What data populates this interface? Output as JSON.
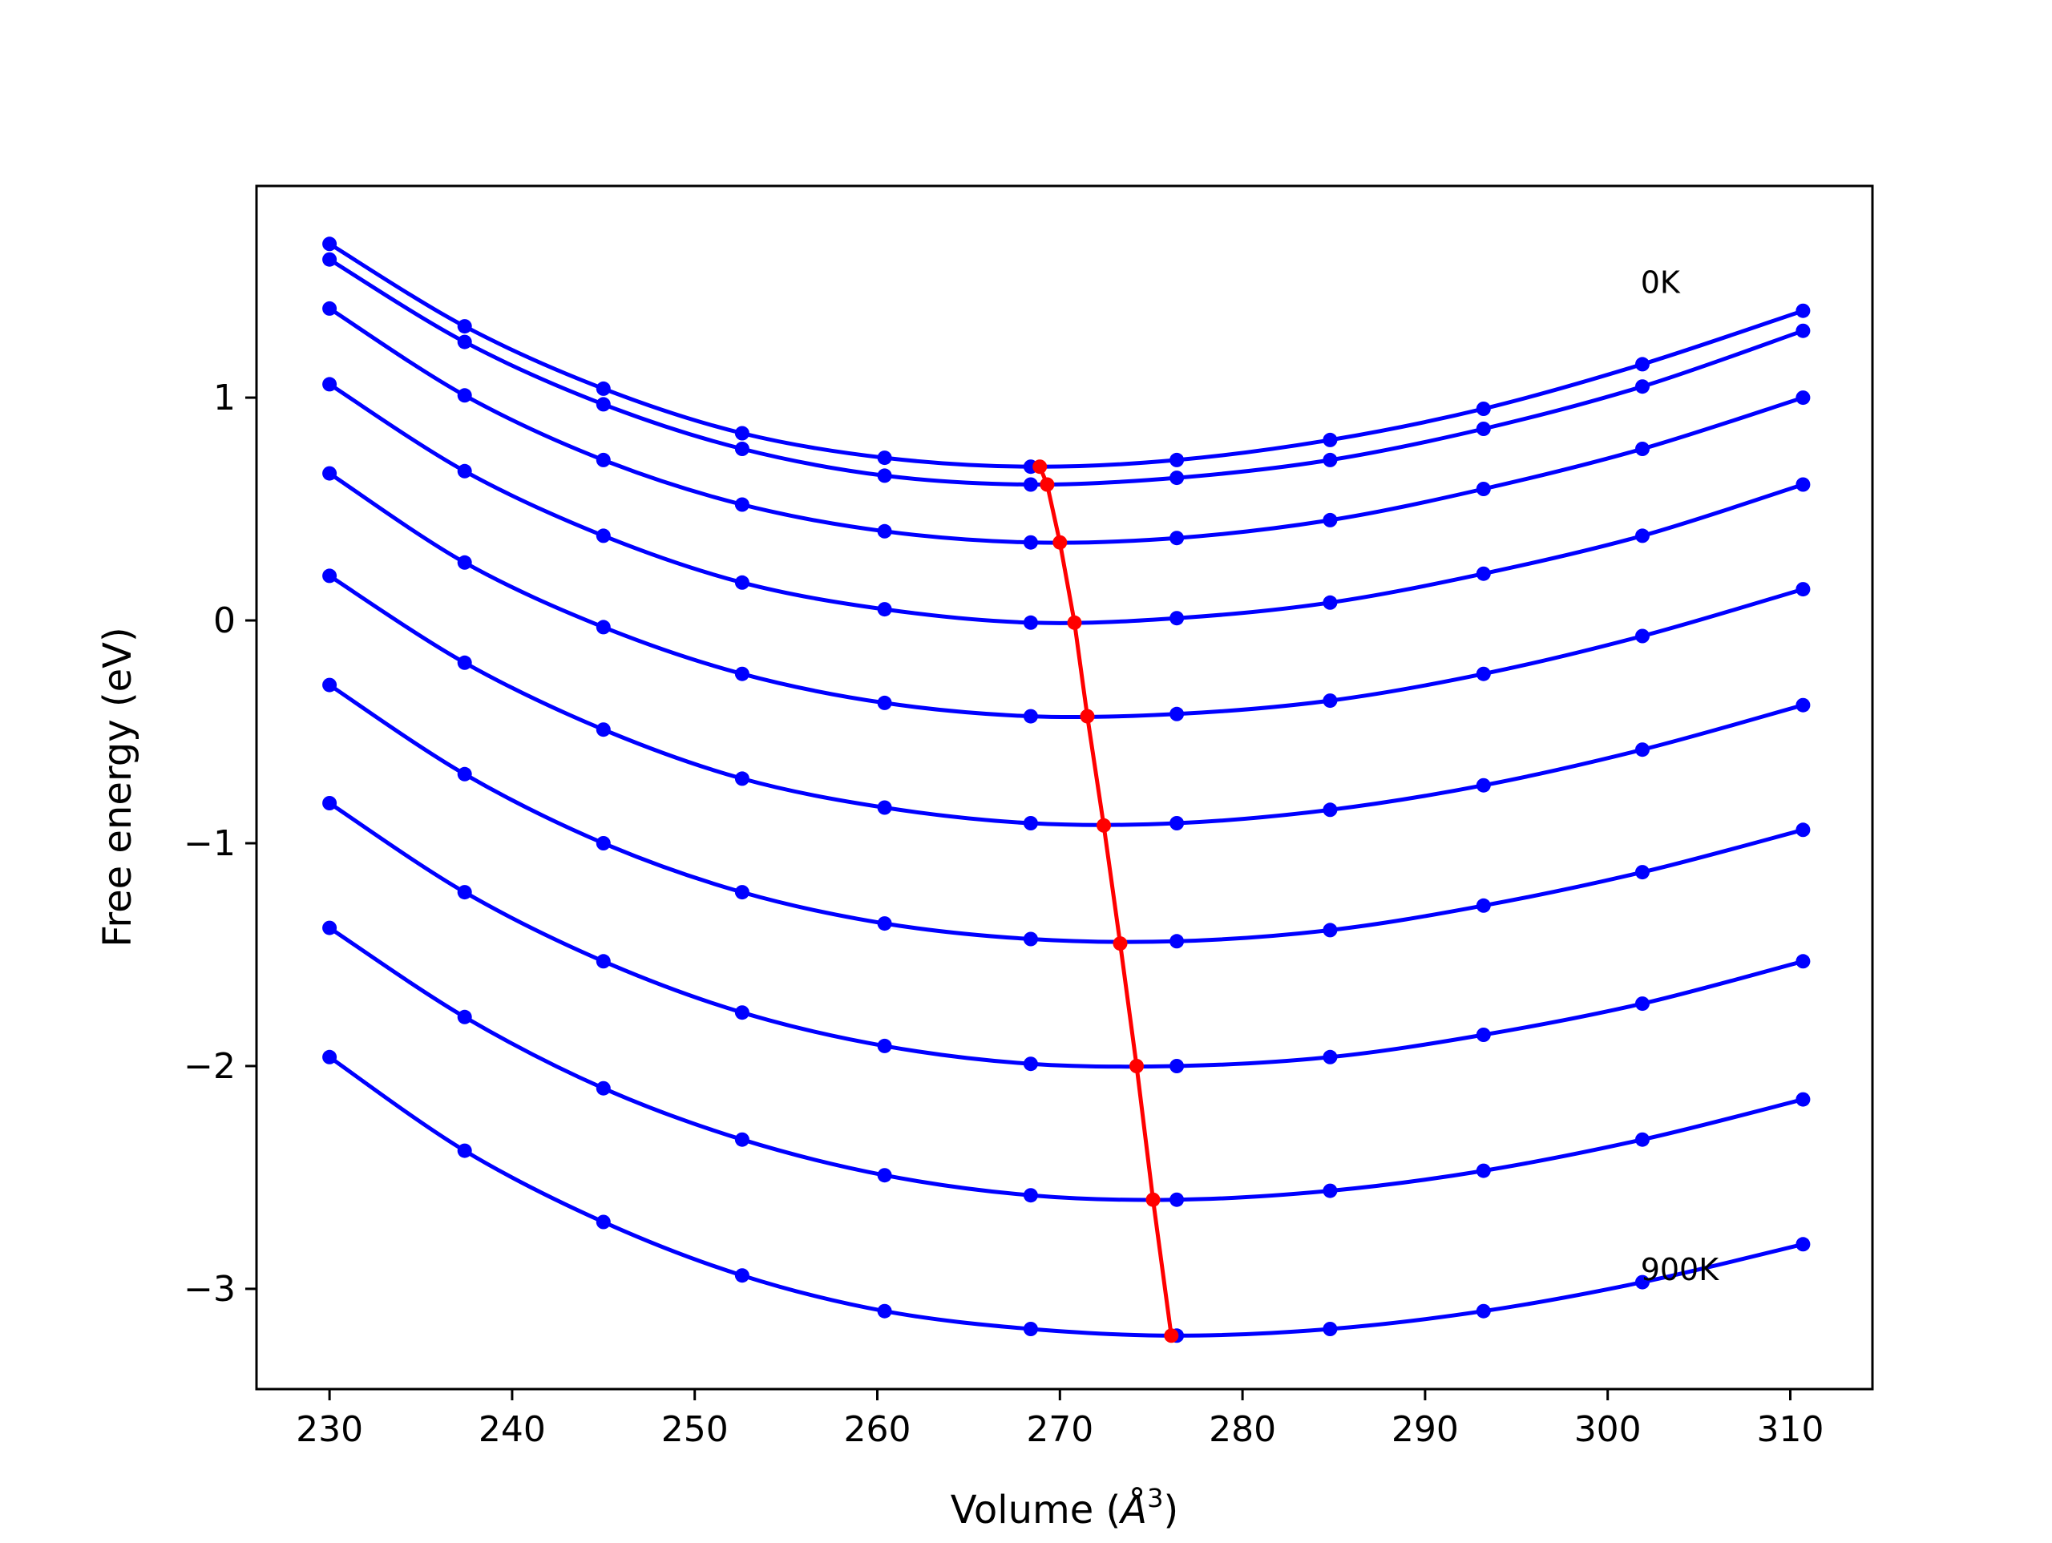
{
  "chart_data": {
    "type": "line",
    "title": "",
    "xlabel_main": "Volume (",
    "xlabel_unit": "Å",
    "xlabel_sup": "3",
    "xlabel_close": ")",
    "ylabel": "Free energy (eV)",
    "xlim": [
      226,
      314.5
    ],
    "ylim": [
      -3.45,
      1.95
    ],
    "x_ticks": [
      230,
      240,
      250,
      260,
      270,
      280,
      290,
      300,
      310
    ],
    "x_tick_labels": [
      "230",
      "240",
      "250",
      "260",
      "270",
      "280",
      "290",
      "300",
      "310"
    ],
    "y_ticks": [
      -3,
      -2,
      -1,
      0,
      1
    ],
    "y_tick_labels": [
      "−3",
      "−2",
      "−1",
      "0",
      "1"
    ],
    "grid": false,
    "x": [
      230.0,
      237.4,
      245.0,
      252.6,
      260.4,
      268.4,
      276.4,
      284.8,
      293.2,
      301.9,
      310.7
    ],
    "series": [
      {
        "values": [
          1.69,
          1.32,
          1.04,
          0.84,
          0.73,
          0.69,
          0.72,
          0.81,
          0.95,
          1.15,
          1.39
        ]
      },
      {
        "values": [
          1.62,
          1.25,
          0.97,
          0.77,
          0.65,
          0.61,
          0.64,
          0.72,
          0.86,
          1.05,
          1.3
        ]
      },
      {
        "values": [
          1.4,
          1.01,
          0.72,
          0.52,
          0.4,
          0.35,
          0.37,
          0.45,
          0.59,
          0.77,
          1.0
        ]
      },
      {
        "values": [
          1.06,
          0.67,
          0.38,
          0.17,
          0.05,
          -0.01,
          0.01,
          0.08,
          0.21,
          0.38,
          0.61
        ]
      },
      {
        "values": [
          0.66,
          0.26,
          -0.03,
          -0.24,
          -0.37,
          -0.43,
          -0.42,
          -0.36,
          -0.24,
          -0.07,
          0.14
        ]
      },
      {
        "values": [
          0.2,
          -0.19,
          -0.49,
          -0.71,
          -0.84,
          -0.91,
          -0.91,
          -0.85,
          -0.74,
          -0.58,
          -0.38
        ]
      },
      {
        "values": [
          -0.29,
          -0.69,
          -1.0,
          -1.22,
          -1.36,
          -1.43,
          -1.44,
          -1.39,
          -1.28,
          -1.13,
          -0.94
        ]
      },
      {
        "values": [
          -0.82,
          -1.22,
          -1.53,
          -1.76,
          -1.91,
          -1.99,
          -2.0,
          -1.96,
          -1.86,
          -1.72,
          -1.53
        ]
      },
      {
        "values": [
          -1.38,
          -1.78,
          -2.1,
          -2.33,
          -2.49,
          -2.58,
          -2.6,
          -2.56,
          -2.47,
          -2.33,
          -2.15
        ]
      },
      {
        "values": [
          -1.96,
          -2.38,
          -2.7,
          -2.94,
          -3.1,
          -3.18,
          -3.21,
          -3.18,
          -3.1,
          -2.97,
          -2.8
        ]
      }
    ],
    "minima": {
      "x": [
        268.9,
        269.3,
        270.0,
        270.8,
        271.5,
        272.4,
        273.3,
        274.2,
        275.1,
        276.1
      ],
      "y": [
        0.69,
        0.61,
        0.35,
        -0.01,
        -0.43,
        -0.92,
        -1.45,
        -2.0,
        -2.6,
        -3.21
      ]
    },
    "annotations": [
      {
        "text": "0K",
        "x": 301.8,
        "y": 1.47
      },
      {
        "text": "900K",
        "x": 301.8,
        "y": -2.96
      }
    ],
    "colors": {
      "series": "#0000ff",
      "minima": "#ff0000",
      "axes": "#000000"
    }
  }
}
